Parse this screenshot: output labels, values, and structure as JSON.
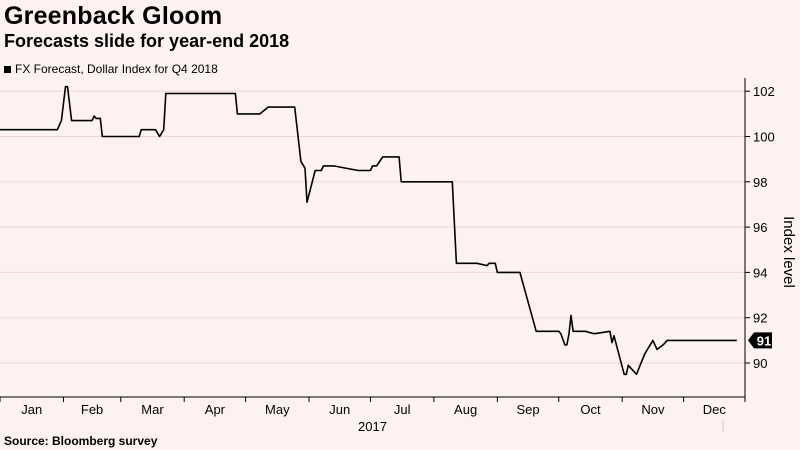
{
  "header": {
    "title": "Greenback Gloom",
    "subtitle": "Forecasts slide for year-end 2018"
  },
  "legend": {
    "label": "FX Forecast, Dollar Index for Q4 2018"
  },
  "footer": {
    "source": "Source: Bloomberg survey"
  },
  "colors": {
    "background": "#fdf1f1",
    "line": "#000000",
    "grid": "#f2d6d6"
  },
  "chart_data": {
    "type": "line",
    "title": "Greenback Gloom",
    "subtitle": "Forecasts slide for year-end 2018",
    "ylabel": "Index level",
    "xlabel": "2017",
    "x_ticks": [
      "Jan",
      "Feb",
      "Mar",
      "Apr",
      "May",
      "Jun",
      "Jul",
      "Aug",
      "Sep",
      "Oct",
      "Nov",
      "Dec"
    ],
    "y_ticks": [
      90,
      92,
      94,
      96,
      98,
      100,
      102
    ],
    "xlim": [
      "2017-01-01",
      "2017-12-31"
    ],
    "ylim": [
      88.5,
      103
    ],
    "grid": true,
    "last_value_label": "91",
    "series": [
      {
        "name": "FX Forecast, Dollar Index for Q4 2018",
        "x": [
          "2017-01-01",
          "2017-01-29",
          "2017-01-31",
          "2017-02-02",
          "2017-02-03",
          "2017-02-05",
          "2017-02-15",
          "2017-02-16",
          "2017-02-17",
          "2017-02-19",
          "2017-02-20",
          "2017-02-25",
          "2017-03-10",
          "2017-03-11",
          "2017-03-14",
          "2017-03-18",
          "2017-03-20",
          "2017-03-22",
          "2017-03-23",
          "2017-04-01",
          "2017-04-12",
          "2017-04-20",
          "2017-04-26",
          "2017-04-27",
          "2017-05-06",
          "2017-05-08",
          "2017-05-12",
          "2017-05-18",
          "2017-05-21",
          "2017-05-25",
          "2017-05-28",
          "2017-05-30",
          "2017-05-31",
          "2017-06-04",
          "2017-06-07",
          "2017-06-08",
          "2017-06-13",
          "2017-06-25",
          "2017-06-28",
          "2017-06-29",
          "2017-07-01",
          "2017-07-02",
          "2017-07-04",
          "2017-07-07",
          "2017-07-08",
          "2017-07-15",
          "2017-07-16",
          "2017-08-10",
          "2017-08-12",
          "2017-08-14",
          "2017-08-21",
          "2017-08-22",
          "2017-08-27",
          "2017-08-28",
          "2017-08-31",
          "2017-09-01",
          "2017-09-02",
          "2017-09-12",
          "2017-09-20",
          "2017-09-21",
          "2017-09-27",
          "2017-10-01",
          "2017-10-02",
          "2017-10-04",
          "2017-10-05",
          "2017-10-06",
          "2017-10-07",
          "2017-10-08",
          "2017-10-14",
          "2017-10-18",
          "2017-10-19",
          "2017-10-26",
          "2017-10-27",
          "2017-10-28",
          "2017-11-02",
          "2017-11-03",
          "2017-11-04",
          "2017-11-08",
          "2017-11-12",
          "2017-11-16",
          "2017-11-18",
          "2017-11-21",
          "2017-11-23",
          "2017-11-28",
          "2017-11-30",
          "2017-12-01",
          "2017-12-04",
          "2017-12-05",
          "2017-12-08",
          "2017-12-14",
          "2017-12-27"
        ],
        "values": [
          100.3,
          100.3,
          100.7,
          102.2,
          102.2,
          100.7,
          100.7,
          100.9,
          100.8,
          100.8,
          100.0,
          100.0,
          100.0,
          100.3,
          100.3,
          100.3,
          100.0,
          100.3,
          101.9,
          101.9,
          101.9,
          101.9,
          101.9,
          101.0,
          101.0,
          101.0,
          101.3,
          101.3,
          101.3,
          101.3,
          98.9,
          98.6,
          97.1,
          98.5,
          98.5,
          98.7,
          98.7,
          98.5,
          98.5,
          98.5,
          98.5,
          98.7,
          98.7,
          99.1,
          99.1,
          99.1,
          98.0,
          98.0,
          94.4,
          94.4,
          94.4,
          94.4,
          94.3,
          94.4,
          94.4,
          94.0,
          94.0,
          94.0,
          91.4,
          91.4,
          91.4,
          91.4,
          91.3,
          90.8,
          90.8,
          91.3,
          92.1,
          91.4,
          91.4,
          91.3,
          91.3,
          91.4,
          90.9,
          91.2,
          89.5,
          89.5,
          89.9,
          89.5,
          90.4,
          91.0,
          90.6,
          90.8,
          91.0,
          91.0,
          91.0,
          91.0,
          91.0,
          91.0,
          91.0,
          91.0,
          91.0
        ]
      }
    ]
  }
}
